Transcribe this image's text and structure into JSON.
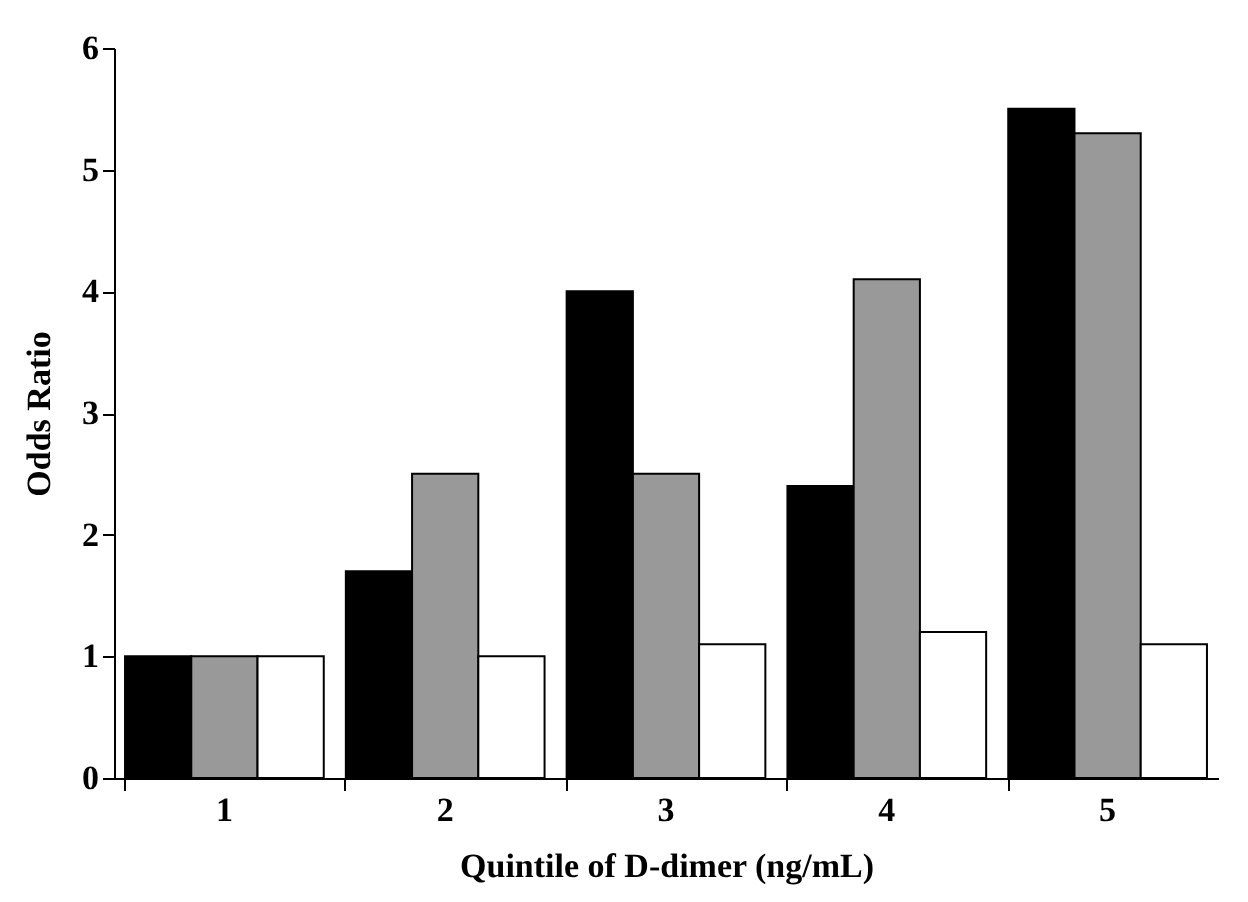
{
  "chart_data": {
    "type": "bar",
    "xlabel": "Quintile of D-dimer (ng/mL)",
    "ylabel": "Odds Ratio",
    "categories": [
      "1",
      "2",
      "3",
      "4",
      "5"
    ],
    "series": [
      {
        "color": "#000000",
        "values": [
          1.0,
          1.7,
          4.0,
          2.4,
          5.5
        ]
      },
      {
        "color": "#999999",
        "values": [
          1.0,
          2.5,
          2.5,
          4.1,
          5.3
        ]
      },
      {
        "color": "#ffffff",
        "values": [
          1.0,
          1.0,
          1.1,
          1.2,
          1.1
        ]
      }
    ],
    "ylim": [
      0,
      6
    ],
    "yticks": [
      0,
      1,
      2,
      3,
      4,
      5,
      6
    ],
    "grid": false,
    "legend": false
  }
}
